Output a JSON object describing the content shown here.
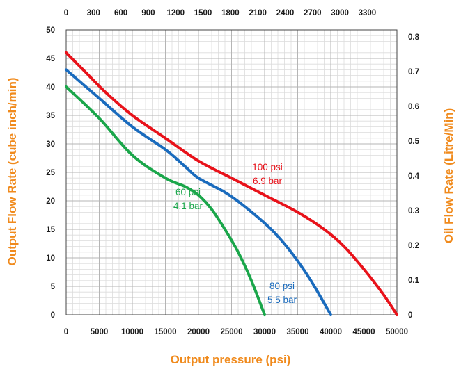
{
  "chart_data": {
    "type": "line",
    "xlabel": "Output pressure (psi)",
    "ylabel": "Output Flow Rate (cube inch/min)",
    "y2label": "Oil Flow Rate (Litre/Min)",
    "xlim": [
      0,
      50000
    ],
    "ylim": [
      0,
      50
    ],
    "x_ticks": [
      0,
      5000,
      10000,
      15000,
      20000,
      25000,
      30000,
      35000,
      40000,
      45000,
      50000
    ],
    "x_ticks_minor_step": 1000,
    "y_ticks": [
      0,
      5,
      10,
      15,
      20,
      25,
      30,
      35,
      40,
      45,
      50
    ],
    "y_ticks_minor_step": 1,
    "x2_ticks": [
      "0",
      "300",
      "600",
      "900",
      "1200",
      "1500",
      "1800",
      "2100",
      "2400",
      "2700",
      "3000",
      "3300"
    ],
    "y2_ticks": [
      "0",
      "0.1",
      "0.2",
      "0.3",
      "0.4",
      "0.5",
      "0.6",
      "0.7",
      "0.8"
    ],
    "grid": true,
    "series": [
      {
        "label_line1": "100 psi",
        "label_line2": "6.9 bar",
        "color": "#e8121a",
        "points": [
          [
            0,
            46
          ],
          [
            3000,
            42.5
          ],
          [
            6000,
            39
          ],
          [
            10000,
            35
          ],
          [
            15000,
            31
          ],
          [
            20000,
            27
          ],
          [
            25000,
            24
          ],
          [
            30000,
            21
          ],
          [
            35000,
            18
          ],
          [
            39000,
            15
          ],
          [
            42000,
            12
          ],
          [
            45000,
            8
          ],
          [
            48000,
            3.5
          ],
          [
            50000,
            0
          ]
        ]
      },
      {
        "label_line1": "80 psi",
        "label_line2": "5.5 bar",
        "color": "#1a6bbd",
        "points": [
          [
            0,
            43
          ],
          [
            5000,
            38
          ],
          [
            10000,
            33
          ],
          [
            15000,
            29
          ],
          [
            18000,
            26
          ],
          [
            20000,
            24
          ],
          [
            24000,
            21.5
          ],
          [
            27000,
            19
          ],
          [
            31000,
            15
          ],
          [
            34000,
            11
          ],
          [
            37000,
            6
          ],
          [
            40000,
            0
          ]
        ]
      },
      {
        "label_line1": "60 psi",
        "label_line2": "4.1 bar",
        "color": "#1aa64a",
        "points": [
          [
            0,
            40
          ],
          [
            5000,
            34.5
          ],
          [
            10000,
            28
          ],
          [
            15000,
            24
          ],
          [
            18000,
            22.5
          ],
          [
            20000,
            21
          ],
          [
            22000,
            18.5
          ],
          [
            24000,
            15
          ],
          [
            26000,
            11
          ],
          [
            28000,
            6
          ],
          [
            30000,
            0
          ]
        ]
      }
    ]
  }
}
